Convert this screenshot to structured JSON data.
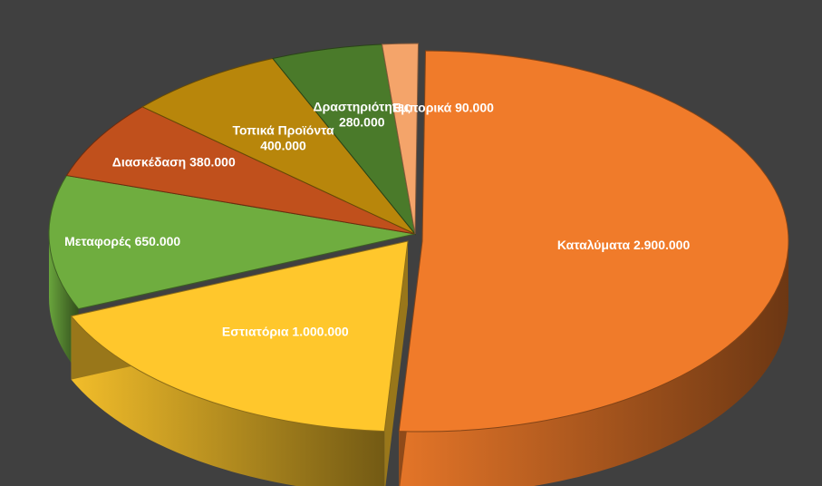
{
  "chart_data": {
    "type": "pie",
    "three_d": true,
    "title": "",
    "background": "#404040",
    "slices": [
      {
        "label_lines": [
          "Καταλύματα 2.900.000"
        ],
        "name": "Καταλύματα",
        "value": 2900000,
        "color": "#F07B2A",
        "exploded": true
      },
      {
        "label_lines": [
          "Εστιατόρια 1.000.000"
        ],
        "name": "Εστιατόρια",
        "value": 1000000,
        "color": "#FFC72C",
        "exploded": true
      },
      {
        "label_lines": [
          "Μεταφορές 650.000"
        ],
        "name": "Μεταφορές",
        "value": 650000,
        "color": "#6FAD3F",
        "exploded": false
      },
      {
        "label_lines": [
          "Διασκέδαση 380.000"
        ],
        "name": "Διασκέδαση",
        "value": 380000,
        "color": "#C0501C",
        "exploded": false
      },
      {
        "label_lines": [
          "Τοπικά Προϊόντα",
          "400.000"
        ],
        "name": "Τοπικά Προϊόντα",
        "value": 400000,
        "color": "#B8860B",
        "exploded": false
      },
      {
        "label_lines": [
          "Δραστηριότητες",
          "280.000"
        ],
        "name": "Δραστηριότητες",
        "value": 280000,
        "color": "#4A7A2A",
        "exploded": false
      },
      {
        "label_lines": [
          "Εμπορικά 90.000"
        ],
        "name": "Εμπορικά",
        "value": 90000,
        "color": "#F4A46A",
        "exploded": false
      }
    ]
  }
}
